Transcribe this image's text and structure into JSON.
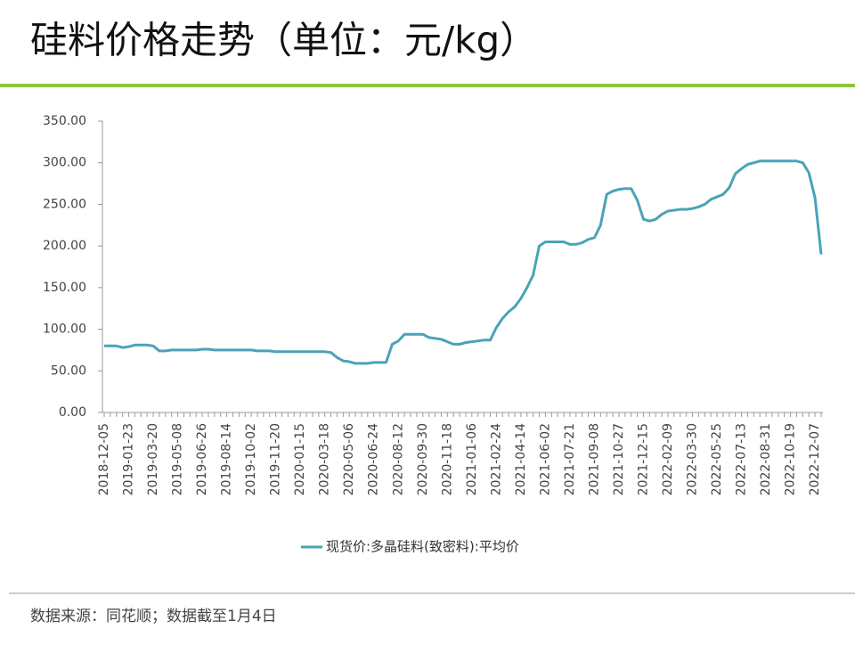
{
  "chart_data": {
    "type": "line",
    "title": "硅料价格走势（单位：元/kg）",
    "footer": "数据来源：同花顺；数据截至1月4日",
    "categories": [
      "2018-12-05",
      null,
      null,
      null,
      "2019-01-23",
      null,
      null,
      null,
      "2019-03-20",
      null,
      null,
      null,
      "2019-05-08",
      null,
      null,
      null,
      "2019-06-26",
      null,
      null,
      null,
      "2019-08-14",
      null,
      null,
      null,
      "2019-10-02",
      null,
      null,
      null,
      "2019-11-20",
      null,
      null,
      null,
      "2020-01-15",
      null,
      null,
      null,
      "2020-03-18",
      null,
      null,
      null,
      "2020-05-06",
      null,
      null,
      null,
      "2020-06-24",
      null,
      null,
      null,
      "2020-08-12",
      null,
      null,
      null,
      "2020-09-30",
      null,
      null,
      null,
      "2020-11-18",
      null,
      null,
      null,
      "2021-01-06",
      null,
      null,
      null,
      "2021-02-24",
      null,
      null,
      null,
      "2021-04-14",
      null,
      null,
      null,
      "2021-06-02",
      null,
      null,
      null,
      "2021-07-21",
      null,
      null,
      null,
      "2021-09-08",
      null,
      null,
      null,
      "2021-10-27",
      null,
      null,
      null,
      "2021-12-15",
      null,
      null,
      null,
      "2022-02-09",
      null,
      null,
      null,
      "2022-03-30",
      null,
      null,
      null,
      "2022-05-25",
      null,
      null,
      null,
      "2022-07-13",
      null,
      null,
      null,
      "2022-08-31",
      null,
      null,
      null,
      "2022-10-19",
      null,
      null,
      null,
      "2022-12-07",
      null
    ],
    "series": [
      {
        "name": "现货价:多晶硅料(致密料):平均价",
        "color": "#4aa3b8",
        "values": [
          80,
          80,
          80,
          78,
          79,
          81,
          81,
          81,
          80,
          74,
          74,
          75,
          75,
          75,
          75,
          75,
          76,
          76,
          75,
          75,
          75,
          75,
          75,
          75,
          75,
          74,
          74,
          74,
          73,
          73,
          73,
          73,
          73,
          73,
          73,
          73,
          73,
          72,
          66,
          62,
          61,
          59,
          59,
          59,
          60,
          60,
          60,
          82,
          86,
          94,
          94,
          94,
          94,
          90,
          89,
          88,
          85,
          82,
          82,
          84,
          85,
          86,
          87,
          87,
          102,
          113,
          121,
          127,
          137,
          150,
          165,
          200,
          205,
          205,
          205,
          205,
          202,
          202,
          204,
          208,
          210,
          225,
          262,
          266,
          268,
          269,
          269,
          255,
          232,
          230,
          232,
          238,
          242,
          243,
          244,
          244,
          245,
          247,
          250,
          256,
          259,
          262,
          270,
          287,
          293,
          298,
          300,
          302,
          302,
          302,
          302,
          302,
          302,
          302,
          300,
          288,
          258,
          190
        ]
      }
    ],
    "ylim": [
      0,
      350
    ],
    "yticks": [
      {
        "value": 0,
        "label": "0.00"
      },
      {
        "value": 50,
        "label": "50.00"
      },
      {
        "value": 100,
        "label": "100.00"
      },
      {
        "value": 150,
        "label": "150.00"
      },
      {
        "value": 200,
        "label": "200.00"
      },
      {
        "value": 250,
        "label": "250.00"
      },
      {
        "value": 300,
        "label": "300.00"
      },
      {
        "value": 350,
        "label": "350.00"
      }
    ],
    "legend": "bottom"
  }
}
